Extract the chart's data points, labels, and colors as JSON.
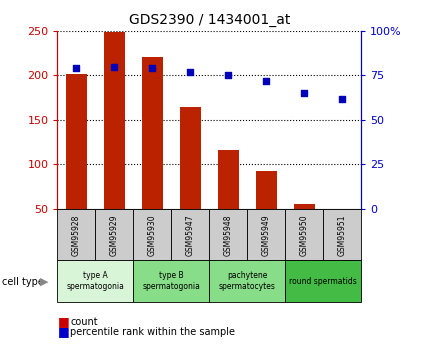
{
  "title": "GDS2390 / 1434001_at",
  "samples": [
    "GSM95928",
    "GSM95929",
    "GSM95930",
    "GSM95947",
    "GSM95948",
    "GSM95949",
    "GSM95950",
    "GSM95951"
  ],
  "counts": [
    202,
    249,
    221,
    165,
    116,
    92,
    55,
    50
  ],
  "percentile_ranks": [
    79,
    80,
    79,
    77,
    75,
    72,
    65,
    62
  ],
  "left_ylim": [
    50,
    250
  ],
  "left_yticks": [
    50,
    100,
    150,
    200,
    250
  ],
  "left_yticklabels": [
    "50",
    "100",
    "150",
    "200",
    "250"
  ],
  "right_ylim": [
    0,
    100
  ],
  "right_yticks": [
    0,
    25,
    50,
    75,
    100
  ],
  "right_yticklabels": [
    "0",
    "25",
    "50",
    "75",
    "100%"
  ],
  "bar_color": "#bb2200",
  "dot_color": "#0000bb",
  "cell_groups": [
    {
      "label": "type A\nspermatogonia",
      "start": 0,
      "end": 2,
      "color": "#d8f5d8"
    },
    {
      "label": "type B\nspermatogonia",
      "start": 2,
      "end": 4,
      "color": "#88dd88"
    },
    {
      "label": "pachytene\nspermatocytes",
      "start": 4,
      "end": 6,
      "color": "#88dd88"
    },
    {
      "label": "round spermatids",
      "start": 6,
      "end": 8,
      "color": "#44bb44"
    }
  ],
  "tick_color_left": "#cc0000",
  "tick_color_right": "#0000cc",
  "sample_box_color": "#cccccc",
  "cell_type_label": "cell type",
  "legend_count_text": "count",
  "legend_pct_text": "percentile rank within the sample",
  "legend_count_color": "#cc0000",
  "legend_pct_color": "#0000cc"
}
